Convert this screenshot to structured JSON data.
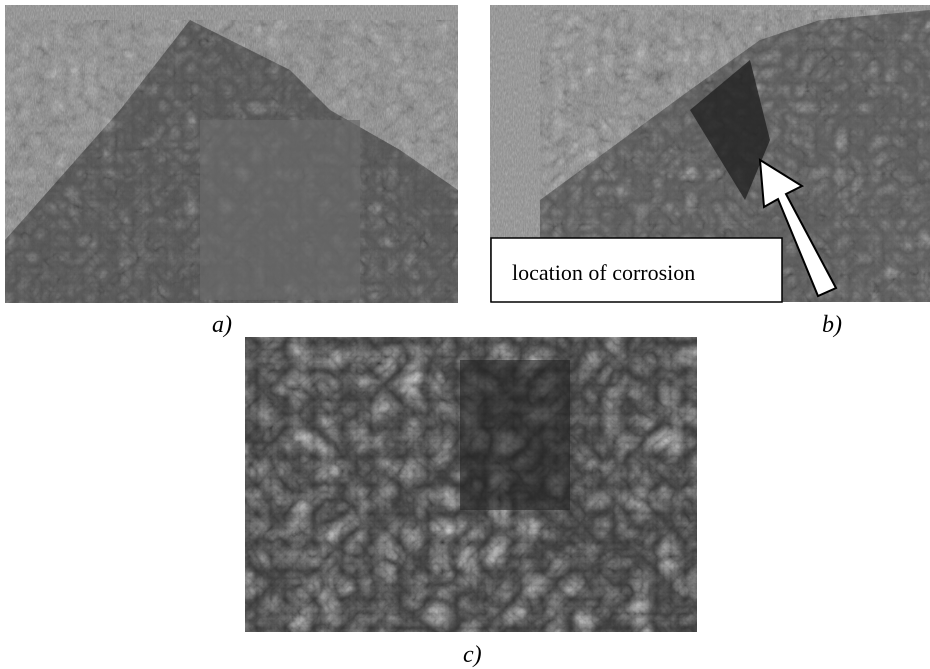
{
  "panels": [
    {
      "label": "a)"
    },
    {
      "label": "b)"
    },
    {
      "label": "c)"
    }
  ],
  "annotation": {
    "text": "location of corrosion"
  }
}
